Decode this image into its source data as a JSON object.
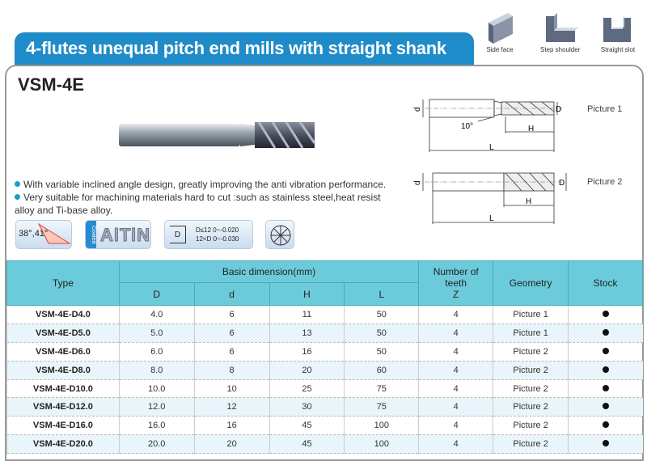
{
  "title": "4-flutes unequal pitch end mills with straight shank",
  "operations": [
    {
      "label": "Side face",
      "icon": "side-face-icon"
    },
    {
      "label": "Step shoulder",
      "icon": "step-shoulder-icon"
    },
    {
      "label": "Straight slot",
      "icon": "straight-slot-icon"
    }
  ],
  "model": "VSM-4E",
  "features": [
    "With variable inclined angle design, greatly improving the anti vibration performance.",
    "Very suitable for machining materials hard to cut :such as stainless steel,heat resist alloy and Ti-base alloy."
  ],
  "badges": {
    "helix": "38°,41°",
    "coated": "Coated",
    "coating": "AlTiN",
    "tol_d": "D",
    "tol_line1": "D≤12  0~-0.020",
    "tol_line2": "12<D  0~-0.030"
  },
  "drawings": {
    "picture1": "Picture 1",
    "picture2": "Picture 2",
    "angle": "10°",
    "d": "d",
    "D": "D",
    "H": "H",
    "L": "L"
  },
  "table": {
    "headers": {
      "type": "Type",
      "basic": "Basic dimension(mm)",
      "D": "D",
      "d": "d",
      "H": "H",
      "L": "L",
      "teeth1": "Number of",
      "teeth2": "teeth",
      "teeth3": "Z",
      "geometry": "Geometry",
      "stock": "Stock"
    },
    "rows": [
      {
        "type": "VSM-4E-D4.0",
        "D": "4.0",
        "d": "6",
        "H": "11",
        "L": "50",
        "Z": "4",
        "geometry": "Picture 1",
        "stock": true
      },
      {
        "type": "VSM-4E-D5.0",
        "D": "5.0",
        "d": "6",
        "H": "13",
        "L": "50",
        "Z": "4",
        "geometry": "Picture 1",
        "stock": true
      },
      {
        "type": "VSM-4E-D6.0",
        "D": "6.0",
        "d": "6",
        "H": "16",
        "L": "50",
        "Z": "4",
        "geometry": "Picture 2",
        "stock": true
      },
      {
        "type": "VSM-4E-D8.0",
        "D": "8.0",
        "d": "8",
        "H": "20",
        "L": "60",
        "Z": "4",
        "geometry": "Picture 2",
        "stock": true
      },
      {
        "type": "VSM-4E-D10.0",
        "D": "10.0",
        "d": "10",
        "H": "25",
        "L": "75",
        "Z": "4",
        "geometry": "Picture 2",
        "stock": true
      },
      {
        "type": "VSM-4E-D12.0",
        "D": "12.0",
        "d": "12",
        "H": "30",
        "L": "75",
        "Z": "4",
        "geometry": "Picture 2",
        "stock": true
      },
      {
        "type": "VSM-4E-D16.0",
        "D": "16.0",
        "d": "16",
        "H": "45",
        "L": "100",
        "Z": "4",
        "geometry": "Picture 2",
        "stock": true
      },
      {
        "type": "VSM-4E-D20.0",
        "D": "20.0",
        "d": "20",
        "H": "45",
        "L": "100",
        "Z": "4",
        "geometry": "Picture 2",
        "stock": true
      }
    ]
  },
  "colors": {
    "title_bar": "#1f8bc8",
    "table_header": "#6ccbdb",
    "bullet": "#1aa0c8"
  }
}
